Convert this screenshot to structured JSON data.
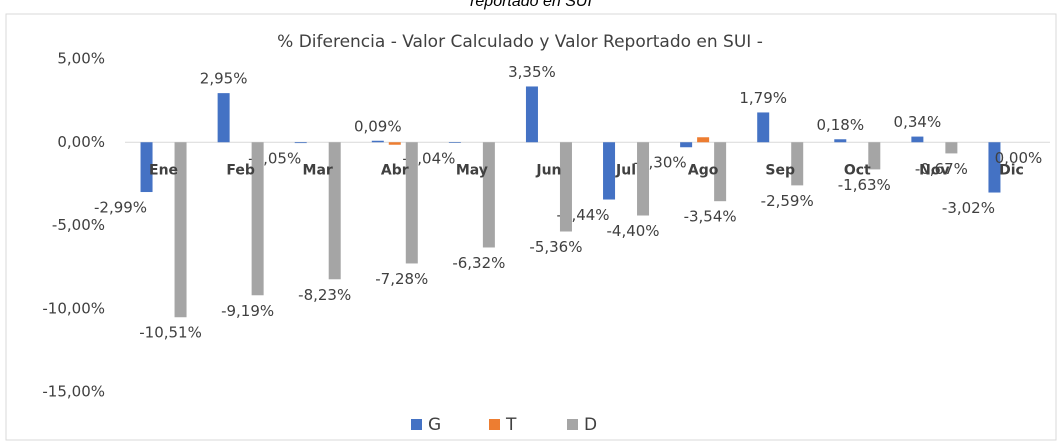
{
  "caption": "reportado en SUI",
  "chart_data": {
    "type": "bar",
    "title": "% Diferencia - Valor Calculado y Valor Reportado en SUI -",
    "categories": [
      "Ene",
      "Feb",
      "Mar",
      "Abr",
      "May",
      "Jun",
      "Jul",
      "Ago",
      "Sep",
      "Oct",
      "Nov",
      "Dic"
    ],
    "series": [
      {
        "name": "G",
        "color": "#4472c4",
        "values": [
          -2.99,
          2.95,
          -0.05,
          0.09,
          -0.04,
          3.35,
          -3.44,
          -0.3,
          1.79,
          0.18,
          0.34,
          -3.02
        ],
        "value_labels": [
          "-2,99%",
          "2,95%",
          "-0,05%",
          "0,09%",
          "-0,04%",
          "3,35%",
          "-3,44%",
          "-0,30%",
          "1,79%",
          "0,18%",
          "0,34%",
          "-3,02%"
        ]
      },
      {
        "name": "T",
        "color": "#ed7d31",
        "values": [
          0,
          0,
          0,
          -0.15,
          0,
          0,
          0,
          0.3,
          0,
          0,
          0,
          0
        ]
      },
      {
        "name": "D",
        "color": "#a5a5a5",
        "values": [
          -10.51,
          -9.19,
          -8.23,
          -7.28,
          -6.32,
          -5.36,
          -4.4,
          -3.54,
          -2.59,
          -1.63,
          -0.67,
          0.0
        ],
        "value_labels": [
          "-10,51%",
          "-9,19%",
          "-8,23%",
          "-7,28%",
          "-6,32%",
          "-5,36%",
          "-4,40%",
          "-3,54%",
          "-2,59%",
          "-1,63%",
          "-0,67%",
          "0,00%"
        ]
      }
    ],
    "ylim": [
      -15,
      5
    ],
    "yticks": [
      {
        "value": 5,
        "label": "5,00%"
      },
      {
        "value": 0,
        "label": "0,00%"
      },
      {
        "value": -5,
        "label": "-5,00%"
      },
      {
        "value": -10,
        "label": "-10,00%"
      },
      {
        "value": -15,
        "label": "-15,00%"
      }
    ],
    "grid": false,
    "legend": "bottom"
  }
}
